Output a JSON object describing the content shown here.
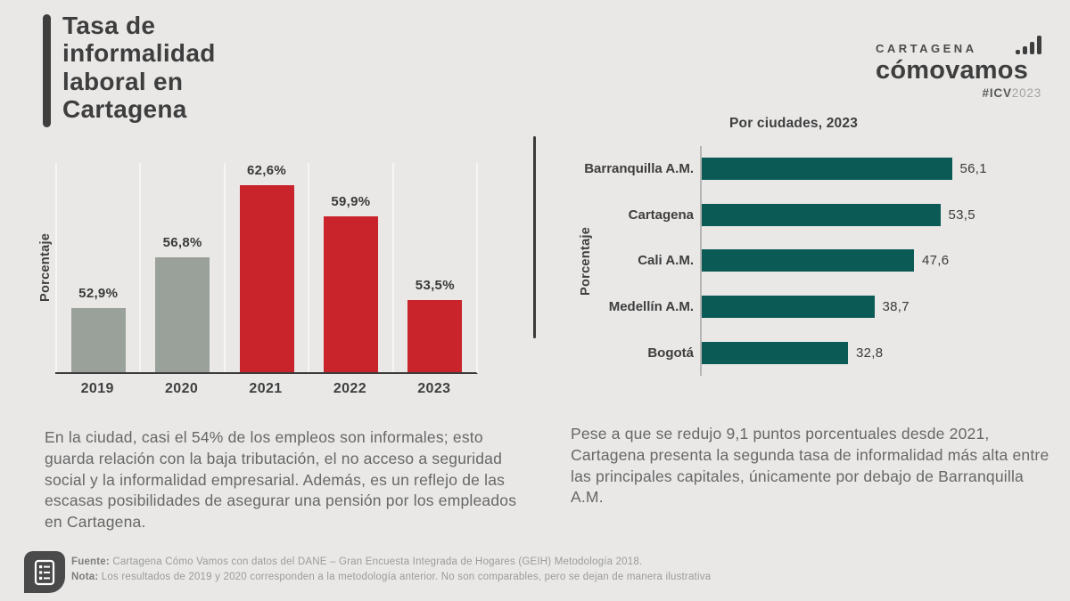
{
  "page": {
    "background": "#e9e8e7",
    "text_dark": "#3e3e3e",
    "text_gray": "#676767"
  },
  "header": {
    "title_lines": [
      "Tasa de",
      "informalidad",
      "laboral en",
      "Cartagena"
    ]
  },
  "logo": {
    "city": "CARTAGENA",
    "brand": "cómovamos",
    "tag_bold": "#ICV",
    "tag_year": "2023",
    "icon": "bar-chart-icon"
  },
  "chart_data": [
    {
      "type": "bar",
      "title": "",
      "ylabel": "Porcentaje",
      "categories": [
        "2019",
        "2020",
        "2021",
        "2022",
        "2023"
      ],
      "values": [
        52.9,
        56.8,
        62.6,
        59.9,
        53.5
      ],
      "value_labels": [
        "52,9%",
        "56,8%",
        "62,6%",
        "59,9%",
        "53,5%"
      ],
      "bar_colors": [
        "#9aa19a",
        "#9aa19a",
        "#c9242b",
        "#c9242b",
        "#c9242b"
      ],
      "ylim": [
        48,
        64
      ],
      "grid": "faint vertical column separators, dark baseline axis",
      "legend": "none"
    },
    {
      "type": "bar-horizontal",
      "title": "Por ciudades, 2023",
      "ylabel": "Porcentaje",
      "categories": [
        "Barranquilla A.M.",
        "Cartagena",
        "Cali A.M.",
        "Medellín A.M.",
        "Bogotá"
      ],
      "values": [
        56.1,
        53.5,
        47.6,
        38.7,
        32.8
      ],
      "value_labels": [
        "56,1",
        "53,5",
        "47,6",
        "38,7",
        "32,8"
      ],
      "bar_color": "#0b5a56",
      "xlim": [
        0,
        60
      ],
      "grid": "none, light vertical axis line at zero",
      "legend": "none"
    }
  ],
  "insights": {
    "left": "En la ciudad, casi el 54% de los empleos son informales; esto guarda relación con la baja tributación, el no acceso a seguridad social y la informalidad empresarial. Además, es un reflejo de las escasas posibilidades de asegurar una pensión por los empleados en Cartagena.",
    "right": "Pese a que se redujo 9,1 puntos porcentuales desde 2021, Cartagena presenta la segunda tasa de informalidad más alta entre las principales capitales, únicamente por debajo de Barranquilla A.M."
  },
  "footer": {
    "icon": "document-list-icon",
    "fuente_label": "Fuente:",
    "fuente_text": " Cartagena Cómo Vamos con datos del DANE – Gran Encuesta Integrada de Hogares (GEIH) Metodología 2018.",
    "nota_label": "Nota:",
    "nota_text": " Los resultados de 2019 y 2020 corresponden a la metodología anterior. No son comparables, pero se dejan de manera ilustrativa"
  }
}
